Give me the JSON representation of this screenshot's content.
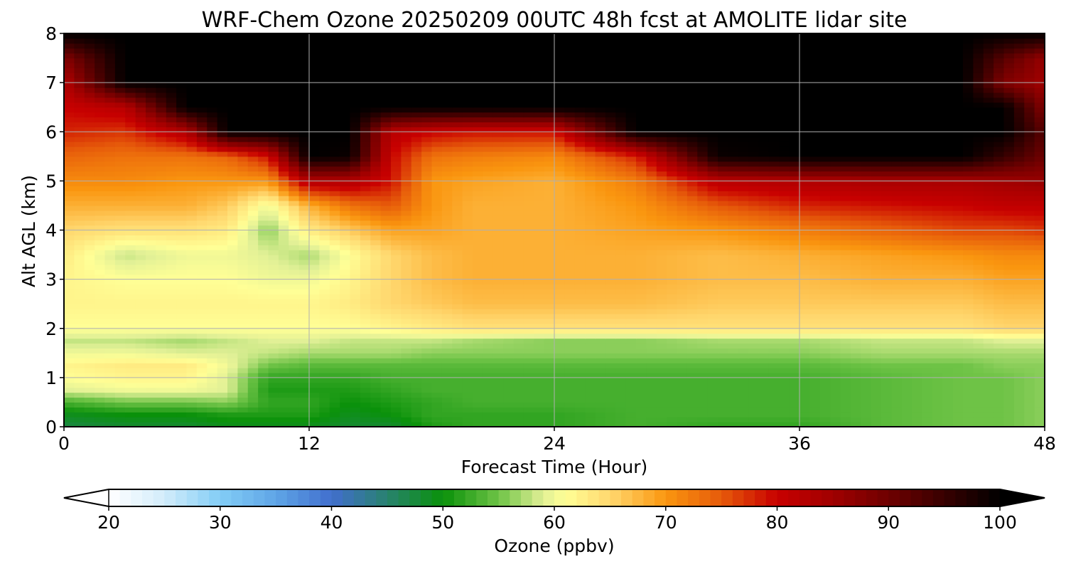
{
  "chart_data": {
    "type": "heatmap",
    "title": "WRF-Chem Ozone  20250209 00UTC 48h fcst at AMOLITE lidar site",
    "xlabel": "Forecast Time (Hour)",
    "ylabel": "Alt AGL (km)",
    "xlim": [
      0,
      48
    ],
    "ylim": [
      0,
      8
    ],
    "x_ticks": [
      "0",
      "12",
      "24",
      "36",
      "48"
    ],
    "y_ticks": [
      "0",
      "1",
      "2",
      "3",
      "4",
      "5",
      "6",
      "7",
      "8"
    ],
    "grid": true,
    "colorbar": {
      "label": "Ozone  (ppbv)",
      "range": [
        20,
        100
      ],
      "extend": "both",
      "ticks": [
        "20",
        "30",
        "40",
        "50",
        "60",
        "70",
        "80",
        "90",
        "100"
      ]
    },
    "x": [
      0,
      3,
      6,
      8,
      10,
      12,
      14,
      16,
      18,
      20,
      24,
      28,
      32,
      36,
      40,
      44,
      46,
      48
    ],
    "y": [
      0,
      0.25,
      0.5,
      0.75,
      1,
      1.25,
      1.5,
      1.75,
      2,
      2.5,
      3,
      3.5,
      4,
      4.5,
      5,
      5.5,
      6,
      6.5,
      7,
      7.5,
      8
    ],
    "z": [
      [
        47,
        48,
        48,
        49,
        49,
        49,
        48,
        48,
        51,
        52,
        52,
        53,
        52,
        52,
        54,
        55,
        55,
        56
      ],
      [
        49,
        50,
        50,
        51,
        51,
        51,
        49,
        50,
        52,
        52,
        52,
        53,
        53,
        53,
        54,
        55,
        55,
        56
      ],
      [
        53,
        55,
        55,
        56,
        52,
        52,
        50,
        51,
        52,
        53,
        53,
        53,
        53,
        53,
        54,
        55,
        55,
        56
      ],
      [
        59,
        60,
        60,
        59,
        51,
        51,
        51,
        52,
        53,
        53,
        53,
        53,
        53,
        53,
        54,
        55,
        55,
        56
      ],
      [
        61,
        62,
        62,
        59,
        52,
        52,
        52,
        53,
        53,
        53,
        53,
        53,
        53,
        53,
        54,
        55,
        55,
        56
      ],
      [
        62,
        63,
        63,
        60,
        55,
        54,
        54,
        54,
        54,
        54,
        54,
        54,
        54,
        54,
        55,
        55,
        56,
        56
      ],
      [
        60,
        60,
        59,
        59,
        58,
        57,
        57,
        57,
        56,
        56,
        56,
        56,
        56,
        56,
        57,
        57,
        57,
        57
      ],
      [
        58,
        58,
        57,
        58,
        59,
        59,
        58,
        58,
        58,
        57,
        56,
        56,
        57,
        57,
        58,
        58,
        59,
        59
      ],
      [
        61,
        61,
        61,
        61,
        61,
        61,
        61,
        62,
        63,
        64,
        64,
        64,
        64,
        64,
        64,
        64,
        65,
        65
      ],
      [
        62,
        62,
        62,
        62,
        62,
        62,
        63,
        65,
        66,
        67,
        67,
        67,
        66,
        66,
        66,
        66,
        67,
        67
      ],
      [
        62,
        61,
        61,
        61,
        60,
        60,
        62,
        65,
        67,
        68,
        68,
        68,
        67,
        67,
        68,
        68,
        69,
        69
      ],
      [
        63,
        58,
        60,
        60,
        59,
        57,
        61,
        65,
        67,
        68,
        68,
        68,
        67,
        68,
        69,
        70,
        71,
        71
      ],
      [
        65,
        64,
        64,
        63,
        56,
        63,
        66,
        69,
        69,
        68,
        68,
        69,
        70,
        72,
        74,
        76,
        76,
        77
      ],
      [
        68,
        68,
        68,
        66,
        60,
        68,
        73,
        75,
        70,
        68,
        68,
        70,
        75,
        78,
        79,
        80,
        81,
        81
      ],
      [
        71,
        71,
        70,
        70,
        70,
        83,
        83,
        79,
        70,
        69,
        68,
        72,
        82,
        83,
        84,
        84,
        85,
        86
      ],
      [
        74,
        73,
        73,
        74,
        79,
        100,
        99,
        80,
        73,
        72,
        71,
        78,
        99,
        100,
        100,
        100,
        95,
        90
      ],
      [
        78,
        77,
        83,
        100,
        100,
        100,
        100,
        82,
        80,
        79,
        79,
        100,
        100,
        100,
        100,
        100,
        100,
        92
      ],
      [
        80,
        82,
        100,
        100,
        100,
        100,
        100,
        100,
        100,
        100,
        100,
        100,
        100,
        100,
        100,
        100,
        100,
        88
      ],
      [
        83,
        100,
        100,
        100,
        100,
        100,
        100,
        100,
        100,
        100,
        100,
        100,
        100,
        100,
        100,
        100,
        88,
        85
      ],
      [
        88,
        100,
        100,
        100,
        100,
        100,
        100,
        100,
        100,
        100,
        100,
        100,
        100,
        100,
        100,
        100,
        92,
        86
      ],
      [
        100,
        100,
        100,
        100,
        100,
        100,
        100,
        100,
        100,
        100,
        100,
        100,
        100,
        100,
        100,
        100,
        100,
        100
      ]
    ]
  }
}
